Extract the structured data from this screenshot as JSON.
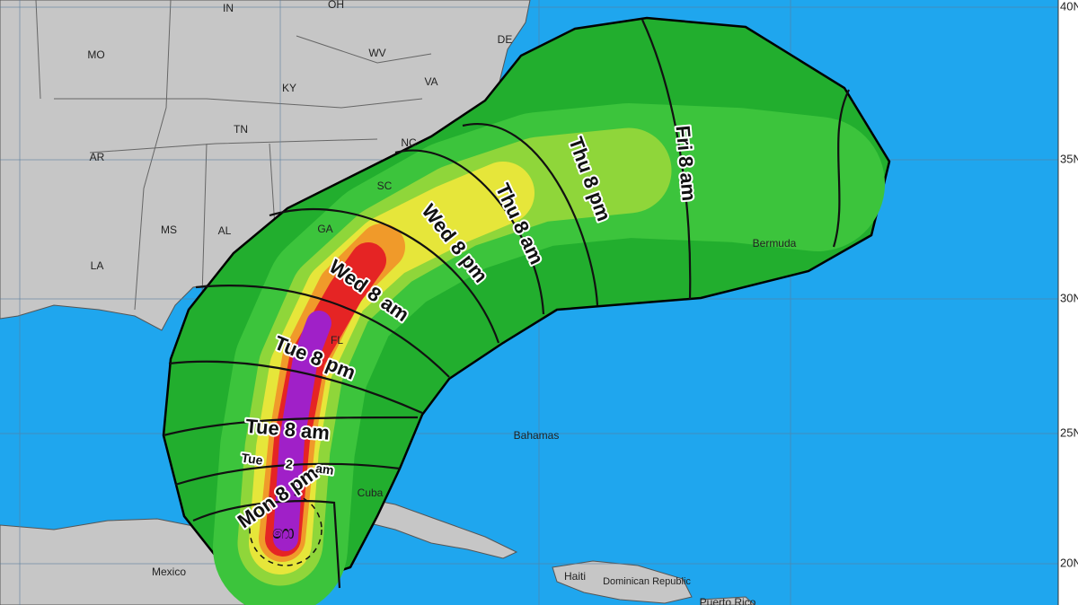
{
  "map": {
    "latitude_labels": [
      "40N",
      "35N",
      "30N",
      "25N",
      "20N"
    ],
    "regions": [
      "IN",
      "OH",
      "MO",
      "KY",
      "WV",
      "VA",
      "TN",
      "NC",
      "AR",
      "SC",
      "MS",
      "AL",
      "GA",
      "LA",
      "FL",
      "DE"
    ],
    "places": [
      "Bermuda",
      "Bahamas",
      "Cuba",
      "Mexico",
      "Haiti",
      "Dominican Republic",
      "Puerto Rico"
    ],
    "arrival_times": [
      "Mon 8 pm",
      "Tue 2 am",
      "Tue 8 am",
      "Tue 8 pm",
      "Wed 8 am",
      "Wed 8 pm",
      "Thu 8 am",
      "Thu 8 pm",
      "Fri 8 am"
    ]
  }
}
